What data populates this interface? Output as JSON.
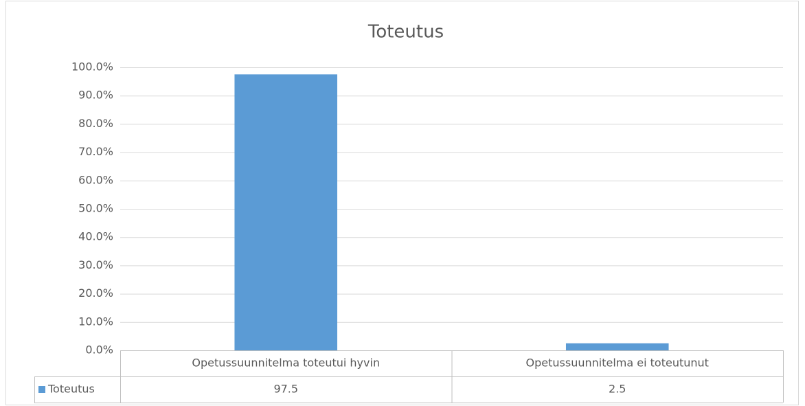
{
  "chart_data": {
    "type": "bar",
    "title": "Toteutus",
    "categories": [
      "Opetussuunnitelma toteutui hyvin",
      "Opetussuunnitelma ei toteutunut"
    ],
    "series": [
      {
        "name": "Toteutus",
        "color": "#5b9bd5",
        "values": [
          97.5,
          2.5
        ]
      }
    ],
    "ylim": [
      0,
      100
    ],
    "yticks": [
      {
        "value": 0,
        "label": "0.0%"
      },
      {
        "value": 10,
        "label": "10.0%"
      },
      {
        "value": 20,
        "label": "20.0%"
      },
      {
        "value": 30,
        "label": "30.0%"
      },
      {
        "value": 40,
        "label": "40.0%"
      },
      {
        "value": 50,
        "label": "50.0%"
      },
      {
        "value": 60,
        "label": "60.0%"
      },
      {
        "value": 70,
        "label": "70.0%"
      },
      {
        "value": 80,
        "label": "80.0%"
      },
      {
        "value": 90,
        "label": "90.0%"
      },
      {
        "value": 100,
        "label": "100.0%"
      }
    ],
    "grid": true,
    "data_table": true
  }
}
